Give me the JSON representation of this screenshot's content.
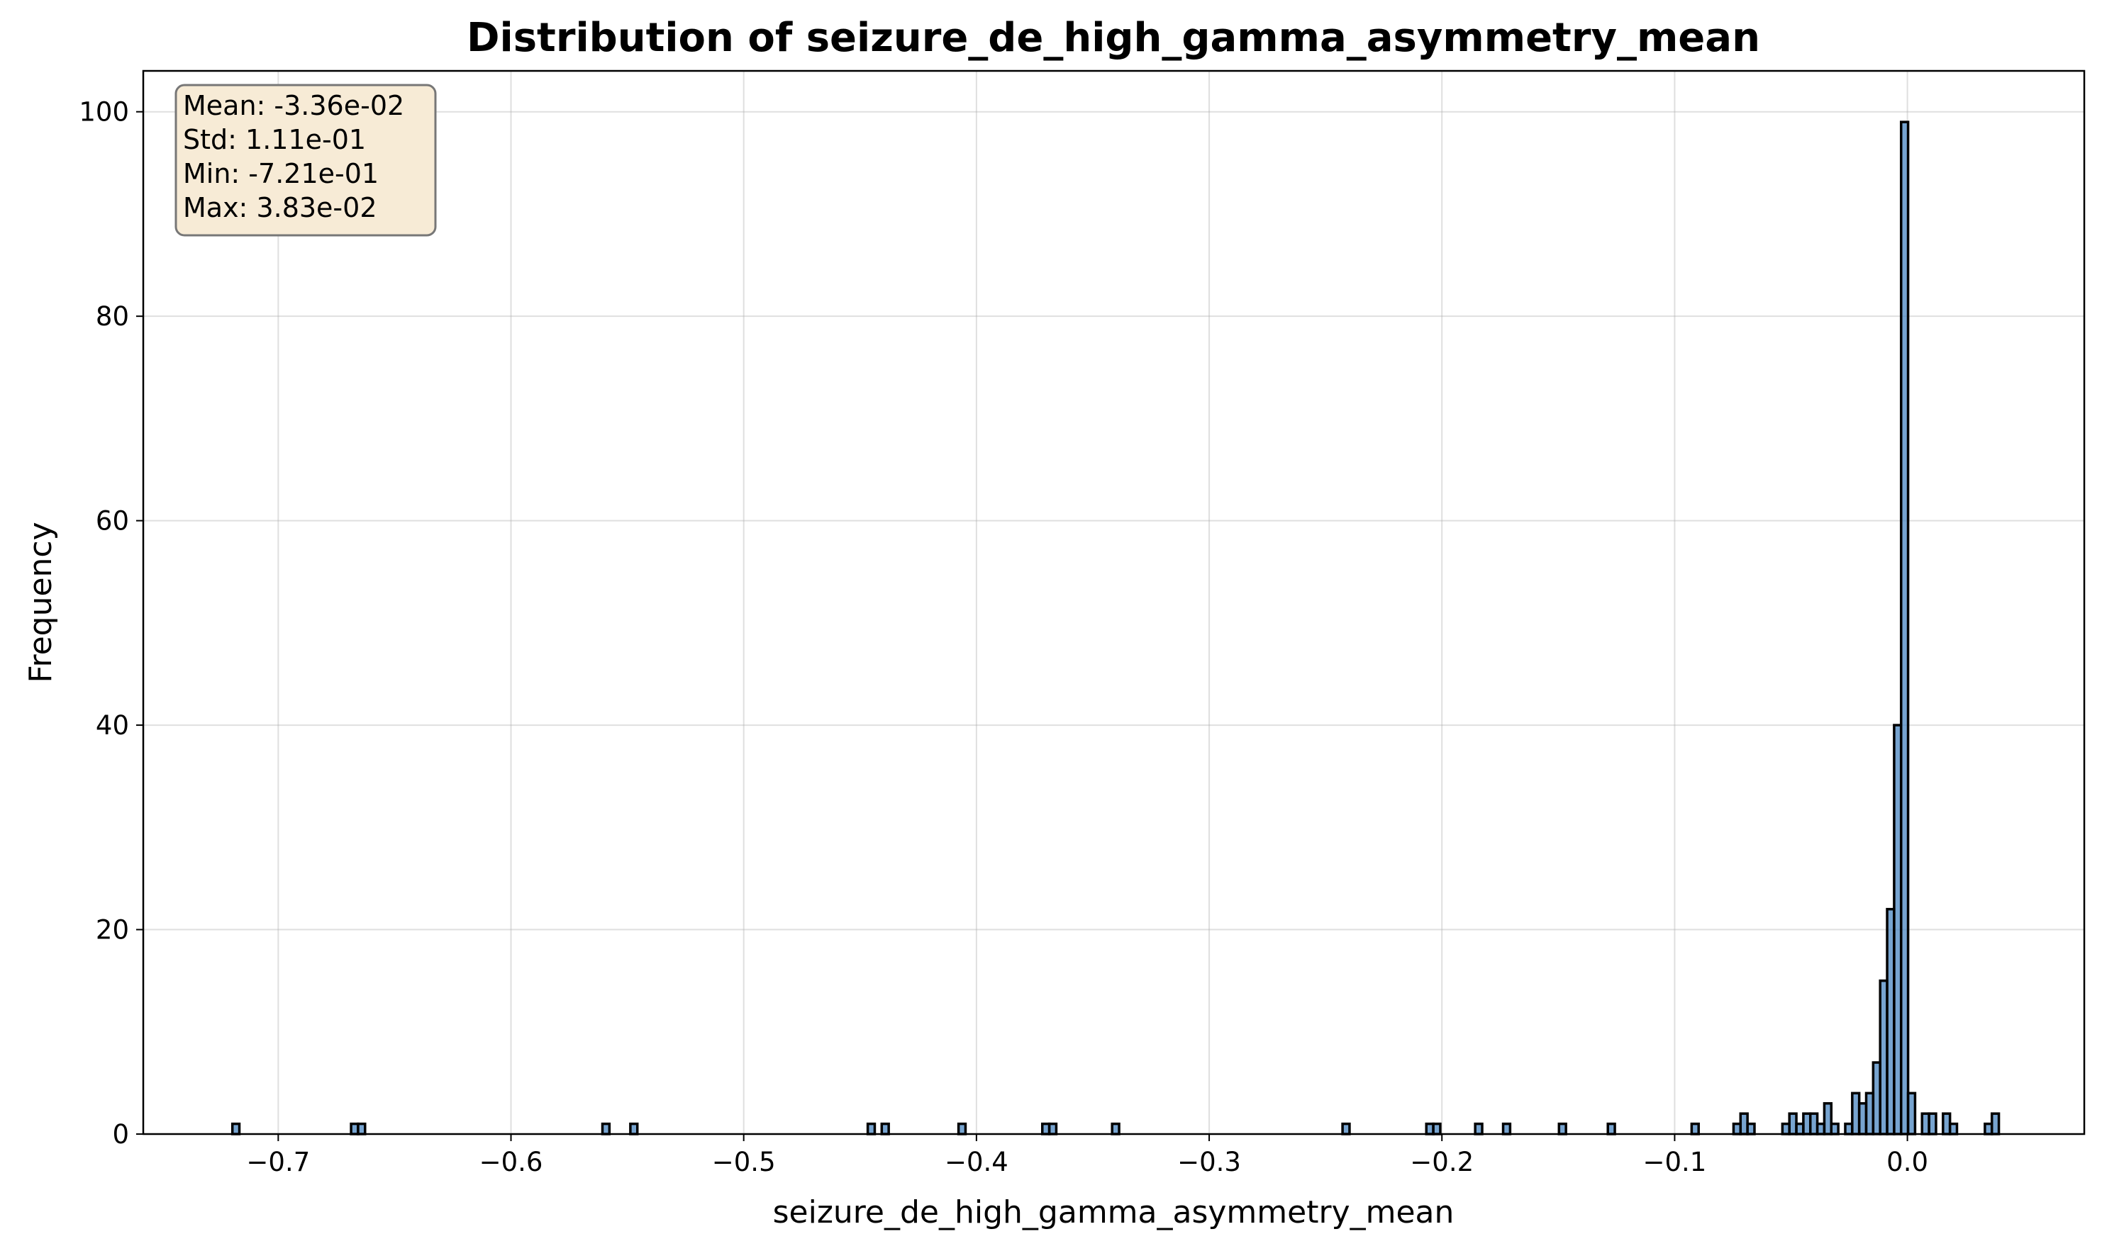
{
  "chart_data": {
    "type": "bar",
    "title": "Distribution of seizure_de_high_gamma_asymmetry_mean",
    "xlabel": "seizure_de_high_gamma_asymmetry_mean",
    "ylabel": "Frequency",
    "xlim": [
      -0.758,
      0.076
    ],
    "ylim": [
      0,
      104
    ],
    "xticks": [
      -0.7,
      -0.6,
      -0.5,
      -0.4,
      -0.3,
      -0.2,
      -0.1,
      0.0
    ],
    "xtick_labels": [
      "−0.7",
      "−0.6",
      "−0.5",
      "−0.4",
      "−0.3",
      "−0.2",
      "−0.1",
      "0.0"
    ],
    "yticks": [
      0,
      20,
      40,
      60,
      80,
      100
    ],
    "ytick_labels": [
      "0",
      "20",
      "40",
      "60",
      "80",
      "100"
    ],
    "grid": true,
    "bin_width": 0.003,
    "bars": [
      {
        "x": -0.7197,
        "count": 1
      },
      {
        "x": -0.6687,
        "count": 1
      },
      {
        "x": -0.6657,
        "count": 1
      },
      {
        "x": -0.5607,
        "count": 1
      },
      {
        "x": -0.5487,
        "count": 1
      },
      {
        "x": -0.4467,
        "count": 1
      },
      {
        "x": -0.4407,
        "count": 1
      },
      {
        "x": -0.4077,
        "count": 1
      },
      {
        "x": -0.3717,
        "count": 1
      },
      {
        "x": -0.3687,
        "count": 1
      },
      {
        "x": -0.3417,
        "count": 1
      },
      {
        "x": -0.2427,
        "count": 1
      },
      {
        "x": -0.2067,
        "count": 1
      },
      {
        "x": -0.2037,
        "count": 1
      },
      {
        "x": -0.1857,
        "count": 1
      },
      {
        "x": -0.1737,
        "count": 1
      },
      {
        "x": -0.1497,
        "count": 1
      },
      {
        "x": -0.1287,
        "count": 1
      },
      {
        "x": -0.0927,
        "count": 1
      },
      {
        "x": -0.0747,
        "count": 1
      },
      {
        "x": -0.0717,
        "count": 2
      },
      {
        "x": -0.0687,
        "count": 1
      },
      {
        "x": -0.0537,
        "count": 1
      },
      {
        "x": -0.0507,
        "count": 2
      },
      {
        "x": -0.0477,
        "count": 1
      },
      {
        "x": -0.0447,
        "count": 2
      },
      {
        "x": -0.0417,
        "count": 2
      },
      {
        "x": -0.0387,
        "count": 1
      },
      {
        "x": -0.0357,
        "count": 3
      },
      {
        "x": -0.0327,
        "count": 1
      },
      {
        "x": -0.0267,
        "count": 1
      },
      {
        "x": -0.0237,
        "count": 4
      },
      {
        "x": -0.0207,
        "count": 3
      },
      {
        "x": -0.0177,
        "count": 4
      },
      {
        "x": -0.0147,
        "count": 7
      },
      {
        "x": -0.0117,
        "count": 15
      },
      {
        "x": -0.0087,
        "count": 22
      },
      {
        "x": -0.0057,
        "count": 40
      },
      {
        "x": -0.0027,
        "count": 99
      },
      {
        "x": 0.0003,
        "count": 4
      },
      {
        "x": 0.0063,
        "count": 2
      },
      {
        "x": 0.0093,
        "count": 2
      },
      {
        "x": 0.0153,
        "count": 2
      },
      {
        "x": 0.0183,
        "count": 1
      },
      {
        "x": 0.0333,
        "count": 1
      },
      {
        "x": 0.0363,
        "count": 2
      }
    ]
  },
  "stats": {
    "mean": "Mean: -3.36e-02",
    "std": "Std: 1.11e-01",
    "min": "Min: -7.21e-01",
    "max": "Max: 3.83e-02"
  },
  "colors": {
    "bar_fill": "#4a86c0",
    "bar_edge": "#000000",
    "stats_box_fill": "#f7ebd6",
    "stats_box_edge": "#777777"
  }
}
